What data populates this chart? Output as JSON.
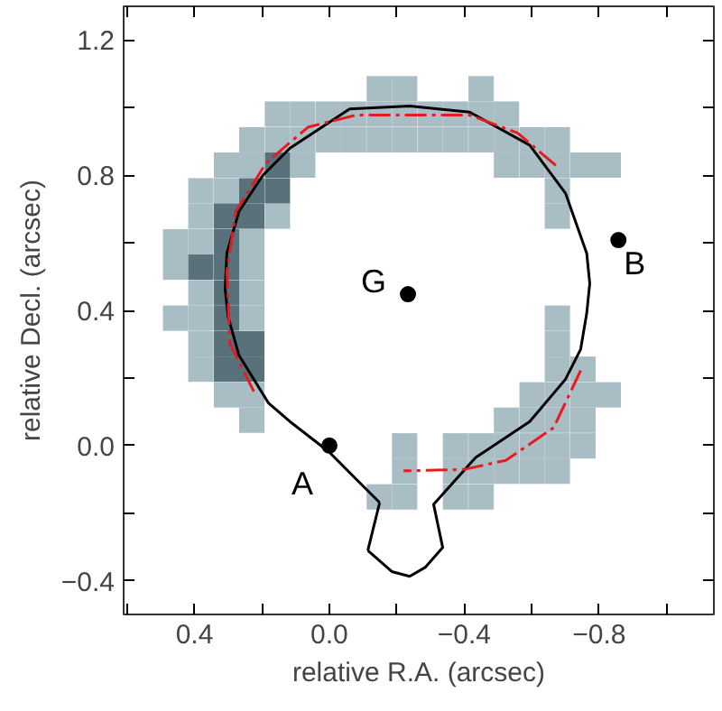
{
  "chart_data": {
    "type": "scatter",
    "xlabel": "relative R.A. (arcsec)",
    "ylabel": "relative Decl. (arcsec)",
    "xlim": [
      0.61,
      -1.14
    ],
    "ylim": [
      -0.5,
      1.3
    ],
    "xticks": [
      {
        "value": 0.6,
        "label": null
      },
      {
        "value": 0.4,
        "label": "0.4"
      },
      {
        "value": 0.2,
        "label": null
      },
      {
        "value": 0,
        "label": "0.0"
      },
      {
        "value": -0.2,
        "label": null
      },
      {
        "value": -0.4,
        "label": "−0.4"
      },
      {
        "value": -0.6,
        "label": null
      },
      {
        "value": -0.8,
        "label": "−0.8"
      },
      {
        "value": -1.0,
        "label": null
      }
    ],
    "yticks": [
      {
        "value": -0.4,
        "label": "−0.4"
      },
      {
        "value": -0.2,
        "label": null
      },
      {
        "value": 0,
        "label": "0.0"
      },
      {
        "value": 0.2,
        "label": null
      },
      {
        "value": 0.4,
        "label": "0.4"
      },
      {
        "value": 0.6,
        "label": null
      },
      {
        "value": 0.8,
        "label": "0.8"
      },
      {
        "value": 1.0,
        "label": null
      },
      {
        "value": 1.2,
        "label": "1.2"
      }
    ],
    "grid": false,
    "series": [
      {
        "marker": "square",
        "color": "#a9bdc5",
        "x": [
          -0.148,
          -0.223,
          -0.45,
          0.154,
          0.079,
          0.003,
          -0.072,
          -0.148,
          -0.223,
          -0.299,
          -0.374,
          -0.45,
          -0.525,
          0.23,
          0.154,
          0.079,
          0.003,
          -0.072,
          -0.148,
          -0.223,
          -0.299,
          -0.374,
          -0.45,
          -0.525,
          -0.601,
          -0.676,
          0.305,
          0.23,
          0.079,
          -0.525,
          -0.601,
          -0.676,
          -0.752,
          -0.827,
          0.381,
          0.305,
          -0.676,
          0.381,
          0.154,
          -0.676,
          0.456,
          0.381,
          0.23,
          0.456,
          0.23,
          0.381,
          0.23,
          0.456,
          0.381,
          0.23,
          -0.676,
          0.381,
          -0.676,
          0.381,
          -0.676,
          -0.752,
          0.305,
          0.23,
          -0.601,
          -0.676,
          -0.752,
          -0.827,
          0.23,
          -0.525,
          -0.601,
          -0.676,
          -0.752,
          -0.223,
          -0.374,
          -0.45,
          -0.525,
          -0.601,
          -0.676,
          -0.752,
          -0.223,
          -0.374,
          -0.45,
          -0.525,
          -0.601,
          -0.676,
          -0.148,
          -0.223,
          -0.374,
          -0.45
        ],
        "values": [
          1.056,
          1.056,
          1.056,
          0.981,
          0.981,
          0.981,
          0.981,
          0.981,
          0.981,
          0.981,
          0.981,
          0.981,
          0.981,
          0.905,
          0.905,
          0.905,
          0.905,
          0.905,
          0.905,
          0.905,
          0.905,
          0.905,
          0.905,
          0.905,
          0.905,
          0.905,
          0.83,
          0.83,
          0.83,
          0.83,
          0.83,
          0.83,
          0.83,
          0.83,
          0.754,
          0.754,
          0.754,
          0.679,
          0.679,
          0.679,
          0.603,
          0.603,
          0.603,
          0.528,
          0.528,
          0.452,
          0.452,
          0.377,
          0.377,
          0.377,
          0.377,
          0.301,
          0.301,
          0.226,
          0.226,
          0.226,
          0.15,
          0.15,
          0.15,
          0.15,
          0.15,
          0.15,
          0.075,
          0.075,
          0.075,
          0.075,
          0.075,
          -0.001,
          -0.001,
          -0.001,
          -0.001,
          -0.001,
          -0.001,
          -0.001,
          -0.076,
          -0.076,
          -0.076,
          -0.076,
          -0.076,
          -0.076,
          -0.152,
          -0.152,
          -0.152,
          -0.152
        ]
      },
      {
        "type": "scatter",
        "marker": "square",
        "color": "#58717a",
        "x": [
          0.154,
          0.23,
          0.154,
          0.305,
          0.23,
          0.305,
          0.381,
          0.305,
          0.305,
          0.305,
          0.305,
          0.23,
          0.305,
          0.23
        ],
        "values": [
          0.83,
          0.754,
          0.754,
          0.679,
          0.679,
          0.603,
          0.528,
          0.528,
          0.452,
          0.377,
          0.301,
          0.301,
          0.226,
          0.226
        ]
      },
      {
        "type": "line",
        "line_style": "solid",
        "color": "#000000",
        "x": [
          -0.149,
          -0.08,
          0.002,
          0.117,
          0.18,
          0.268,
          0.3,
          0.309,
          0.304,
          0.268,
          0.197,
          0.117,
          -0.06,
          -0.238,
          -0.416,
          -0.594,
          -0.7,
          -0.763,
          -0.772,
          -0.763,
          -0.745,
          -0.7,
          -0.594,
          -0.434,
          -0.309,
          -0.336,
          -0.285,
          -0.238,
          -0.185,
          -0.114
        ],
        "values": [
          -0.169,
          -0.1,
          -0.018,
          0.071,
          0.125,
          0.267,
          0.38,
          0.462,
          0.569,
          0.693,
          0.8,
          0.88,
          0.996,
          1.005,
          0.987,
          0.889,
          0.747,
          0.569,
          0.48,
          0.391,
          0.285,
          0.196,
          0.071,
          -0.035,
          -0.174,
          -0.302,
          -0.36,
          -0.387,
          -0.373,
          -0.311
        ]
      },
      {
        "type": "line",
        "line_style": "solid",
        "color": "#000000",
        "x": [
          -0.114,
          -0.149
        ],
        "values": [
          -0.311,
          -0.169
        ]
      },
      {
        "type": "line",
        "line_style": "dashed",
        "color": "#e8191f",
        "x": [
          0.224,
          0.295,
          0.304,
          0.277,
          0.188,
          0.064,
          -0.078,
          -0.416,
          -0.558,
          -0.674,
          -0.7,
          -0.745,
          -0.665,
          -0.523,
          -0.398,
          -0.22
        ],
        "values": [
          0.16,
          0.302,
          0.516,
          0.693,
          0.836,
          0.942,
          0.978,
          0.978,
          0.925,
          0.827,
          null,
          0.222,
          0.053,
          -0.044,
          -0.071,
          -0.075
        ]
      },
      {
        "type": "scatter",
        "marker": "circle",
        "color": "#000000",
        "x": [
          0,
          -0.233,
          -0.857
        ],
        "values": [
          0,
          0.448,
          0.608
        ]
      }
    ],
    "annotations": [
      {
        "text": "A",
        "x": 0,
        "y": 0
      },
      {
        "text": "G",
        "x": -0.233,
        "y": 0.448
      },
      {
        "text": "B",
        "x": -0.857,
        "y": 0.608
      }
    ]
  }
}
